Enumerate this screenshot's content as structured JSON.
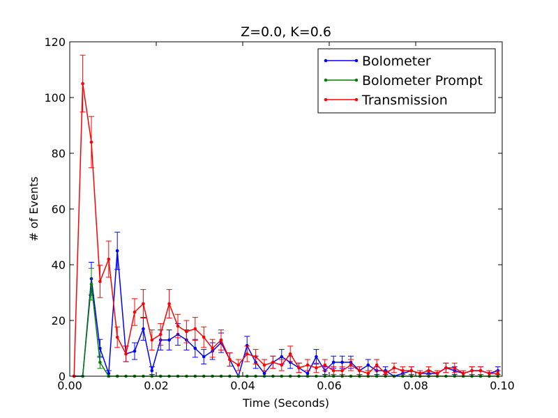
{
  "chart_data": {
    "type": "line",
    "title": "Z=0.0, K=0.6",
    "xlabel": "Time (Seconds)",
    "ylabel": "# of Events",
    "xlim": [
      0.0,
      0.1
    ],
    "ylim": [
      0,
      120
    ],
    "xticks": [
      0.0,
      0.02,
      0.04,
      0.06,
      0.08,
      0.1
    ],
    "xtick_labels": [
      "0.00",
      "0.02",
      "0.04",
      "0.06",
      "0.08",
      "0.10"
    ],
    "yticks": [
      0,
      20,
      40,
      60,
      80,
      100,
      120
    ],
    "ytick_labels": [
      "0",
      "20",
      "40",
      "60",
      "80",
      "100",
      "120"
    ],
    "grid": false,
    "legend_position": "top-right",
    "x": [
      0.001,
      0.003,
      0.005,
      0.007,
      0.009,
      0.011,
      0.013,
      0.015,
      0.017,
      0.019,
      0.021,
      0.023,
      0.025,
      0.027,
      0.029,
      0.031,
      0.033,
      0.035,
      0.037,
      0.039,
      0.041,
      0.043,
      0.045,
      0.047,
      0.049,
      0.051,
      0.053,
      0.055,
      0.057,
      0.059,
      0.061,
      0.063,
      0.065,
      0.067,
      0.069,
      0.071,
      0.073,
      0.075,
      0.077,
      0.079,
      0.081,
      0.083,
      0.085,
      0.087,
      0.089,
      0.091,
      0.093,
      0.095,
      0.097,
      0.099
    ],
    "series": [
      {
        "name": "Bolometer",
        "color": "#0000ff",
        "values": [
          0,
          0,
          35,
          10,
          1,
          45,
          8,
          9,
          17,
          2,
          13,
          13,
          15,
          13,
          10,
          7,
          9,
          12,
          6,
          0,
          11,
          5,
          1,
          5,
          7,
          5,
          3,
          1,
          7,
          2,
          5,
          5,
          5,
          2,
          4,
          2,
          2,
          0,
          1,
          2,
          1,
          1,
          1,
          3,
          2,
          1,
          2,
          2,
          1,
          2
        ],
        "errors": [
          0,
          0,
          5.9,
          3.2,
          1.0,
          6.7,
          2.8,
          3.0,
          4.1,
          1.4,
          3.6,
          3.6,
          3.9,
          3.6,
          3.2,
          2.6,
          3.0,
          3.5,
          2.4,
          0,
          3.3,
          2.2,
          1.0,
          2.2,
          2.6,
          2.2,
          1.7,
          1.0,
          2.6,
          1.4,
          2.2,
          2.2,
          2.2,
          1.4,
          2.0,
          1.4,
          1.4,
          0,
          1.0,
          1.4,
          1.0,
          1.0,
          1.0,
          1.7,
          1.4,
          1.0,
          1.4,
          1.4,
          1.0,
          1.4
        ]
      },
      {
        "name": "Bolometer Prompt",
        "color": "#008000",
        "values": [
          0,
          0,
          33,
          5,
          0,
          0,
          0,
          0,
          0,
          0,
          0,
          0,
          0,
          0,
          0,
          0,
          0,
          0,
          0,
          0,
          0,
          0,
          0,
          0,
          0,
          0,
          0,
          0,
          0,
          0,
          0,
          0,
          0,
          0,
          0,
          0,
          0,
          0,
          0,
          0,
          0,
          0,
          0,
          0,
          0,
          0,
          0,
          0,
          0,
          0
        ],
        "errors": [
          0,
          0,
          5.7,
          2.2,
          0,
          0,
          0,
          0,
          0,
          0,
          0,
          0,
          0,
          0,
          0,
          0,
          0,
          0,
          0,
          0,
          0,
          0,
          0,
          0,
          0,
          0,
          0,
          0,
          0,
          0,
          0,
          0,
          0,
          0,
          0,
          0,
          0,
          0,
          0,
          0,
          0,
          0,
          0,
          0,
          0,
          0,
          0,
          0,
          0,
          0
        ]
      },
      {
        "name": "Transmission",
        "color": "#ff0000",
        "values": [
          0,
          105,
          84,
          34,
          42,
          14,
          8,
          23,
          26,
          13,
          15,
          26,
          18,
          16,
          17,
          14,
          10,
          13,
          6,
          4,
          8,
          7,
          4,
          5,
          4,
          8,
          3,
          4,
          3,
          4,
          2,
          2,
          4,
          2,
          1,
          4,
          1,
          3,
          2,
          2,
          1,
          2,
          1,
          3,
          3,
          1,
          2,
          2,
          1,
          1
        ],
        "errors": [
          0,
          10.2,
          9.2,
          5.8,
          6.5,
          3.7,
          2.8,
          4.8,
          5.1,
          3.6,
          3.9,
          5.1,
          4.2,
          4.0,
          4.1,
          3.7,
          3.2,
          3.6,
          2.4,
          2.0,
          2.8,
          2.6,
          2.0,
          2.2,
          2.0,
          2.8,
          1.7,
          2.0,
          1.7,
          2.0,
          1.4,
          1.4,
          2.0,
          1.4,
          1.0,
          2.0,
          1.0,
          1.7,
          1.4,
          1.4,
          1.0,
          1.4,
          1.0,
          1.7,
          1.7,
          1.0,
          1.4,
          1.4,
          1.0,
          1.0
        ]
      }
    ]
  }
}
